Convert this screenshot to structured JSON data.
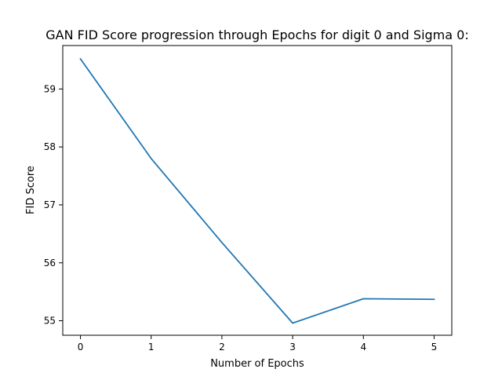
{
  "chart_data": {
    "type": "line",
    "title": "GAN FID Score progression through Epochs for digit 0 and Sigma 0:",
    "xlabel": "Number of Epochs",
    "ylabel": "FID Score",
    "x": [
      0,
      1,
      2,
      3,
      4,
      5
    ],
    "series": [
      {
        "values": [
          59.52,
          57.8,
          56.35,
          54.96,
          55.38,
          55.37
        ],
        "color": "#1f77b4"
      }
    ],
    "xlim": [
      -0.25,
      5.25
    ],
    "ylim": [
      54.75,
      59.75
    ],
    "xticks": [
      0,
      1,
      2,
      3,
      4,
      5
    ],
    "yticks": [
      55,
      56,
      57,
      58,
      59
    ],
    "grid": false,
    "legend": "none"
  }
}
